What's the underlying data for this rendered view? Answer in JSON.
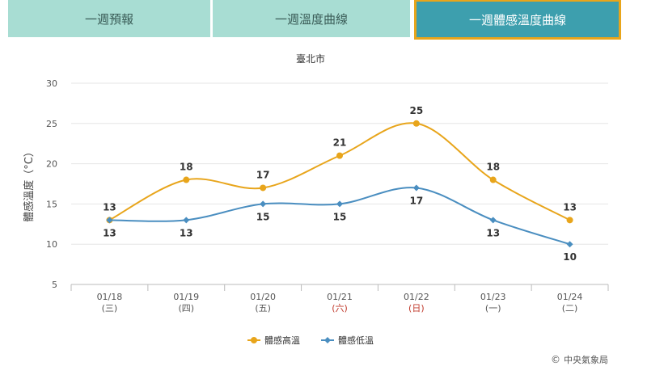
{
  "tabs": [
    {
      "label": "一週預報",
      "active": false
    },
    {
      "label": "一週溫度曲線",
      "active": false
    },
    {
      "label": "一週體感溫度曲線",
      "active": true
    }
  ],
  "colors": {
    "tab_inactive": "#a8ddd3",
    "tab_active": "#3d9fae",
    "tab_active_border": "#e8a51b",
    "high": "#e8a51b",
    "low": "#4a8ec0",
    "weekend": "#c0392b"
  },
  "chart_data": {
    "type": "line",
    "title": "臺北市",
    "ylabel": "體感溫度（°C）",
    "ylim": [
      5,
      30
    ],
    "yticks": [
      5,
      10,
      15,
      20,
      25,
      30
    ],
    "categories": [
      {
        "date": "01/18",
        "day": "(三)",
        "weekend": false
      },
      {
        "date": "01/19",
        "day": "(四)",
        "weekend": false
      },
      {
        "date": "01/20",
        "day": "(五)",
        "weekend": false
      },
      {
        "date": "01/21",
        "day": "(六)",
        "weekend": true
      },
      {
        "date": "01/22",
        "day": "(日)",
        "weekend": true
      },
      {
        "date": "01/23",
        "day": "(一)",
        "weekend": false
      },
      {
        "date": "01/24",
        "day": "(二)",
        "weekend": false
      }
    ],
    "series": [
      {
        "name": "體感高溫",
        "values": [
          13,
          18,
          17,
          21,
          25,
          18,
          13
        ],
        "marker": "circle"
      },
      {
        "name": "體感低溫",
        "values": [
          13,
          13,
          15,
          15,
          17,
          13,
          10
        ],
        "marker": "diamond"
      }
    ],
    "legend_position": "bottom-center",
    "grid": true
  },
  "footer": {
    "credit": "中央氣象局"
  }
}
